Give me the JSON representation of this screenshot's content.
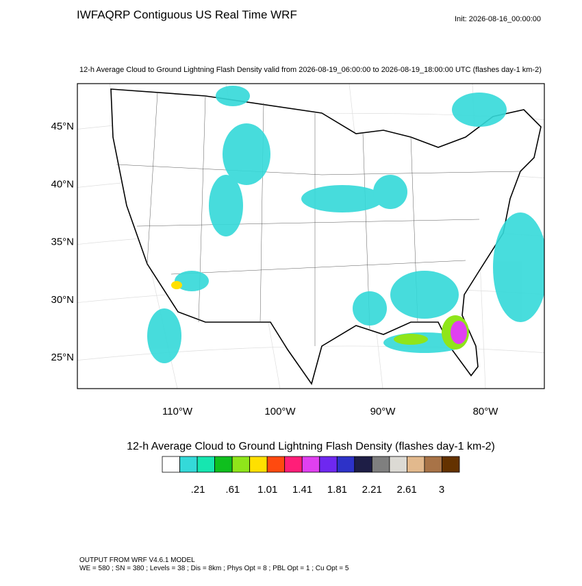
{
  "header": {
    "title": "IWFAQRP Contiguous US Real Time WRF",
    "init": "Init: 2026-08-16_00:00:00",
    "subtitle": "12-h Average Cloud to Ground Lightning Flash Density valid from 2026-08-19_06:00:00 to 2026-08-19_18:00:00 UTC   (flashes day-1 km-2)"
  },
  "map": {
    "lat_labels": [
      "45°N",
      "40°N",
      "35°N",
      "30°N",
      "25°N"
    ],
    "lon_labels": [
      "110°W",
      "100°W",
      "90°W",
      "80°W"
    ]
  },
  "colorbar": {
    "title": "12-h Average Cloud to Ground Lightning Flash Density  (flashes day-1 km-2)",
    "colors": [
      "#ffffff",
      "#34d9d9",
      "#16e6b0",
      "#0fbf1e",
      "#8fe51a",
      "#ffe000",
      "#ff4a0f",
      "#ff1e78",
      "#e040f0",
      "#6e28f0",
      "#2d32c8",
      "#1e1e46",
      "#7f7f7f",
      "#dcdad4",
      "#e2b98d",
      "#a87347",
      "#643200"
    ],
    "labels": [
      ".21",
      ".61",
      "1.01",
      "1.41",
      "1.81",
      "2.21",
      "2.61",
      "3"
    ]
  },
  "footer": {
    "line1": "OUTPUT FROM WRF V4.6.1 MODEL",
    "line2": "WE = 580 ; SN = 380 ; Levels = 38 ; Dis = 8km ; Phys Opt = 8 ; PBL Opt = 1 ; Cu Opt = 5"
  }
}
